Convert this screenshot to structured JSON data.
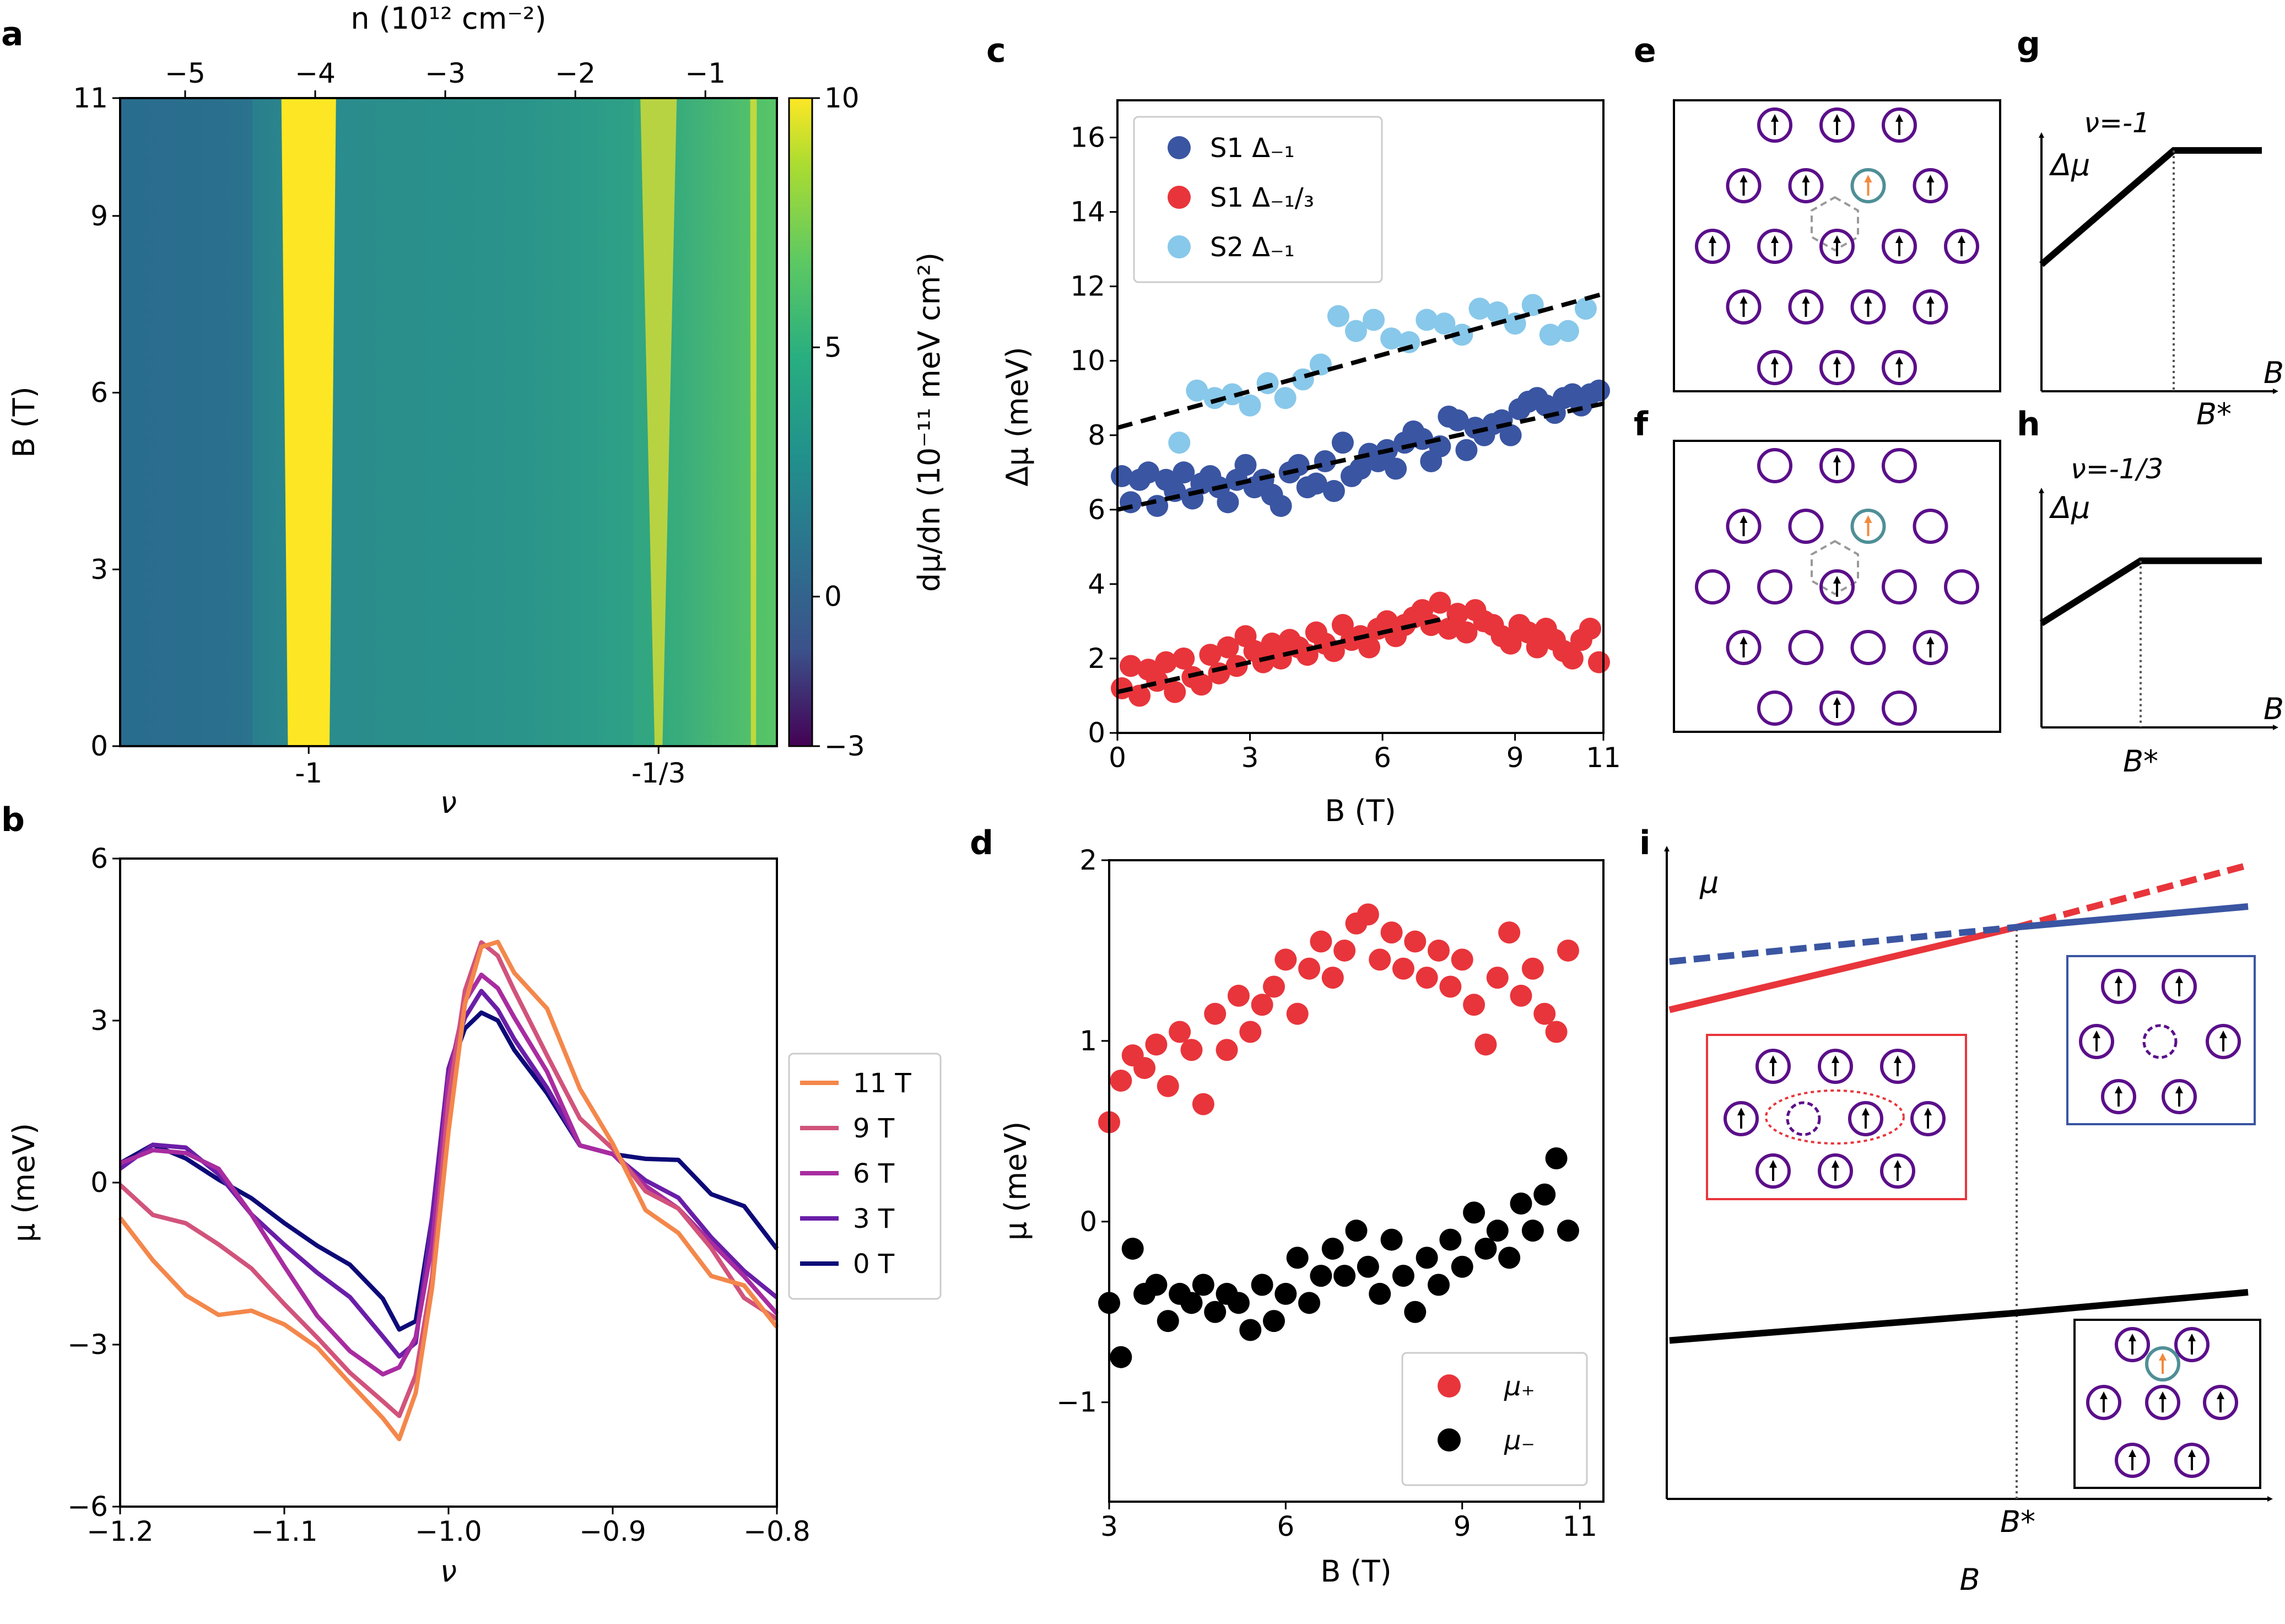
{
  "panel_labels": {
    "a": "a",
    "b": "b",
    "c": "c",
    "d": "d",
    "e": "e",
    "f": "f",
    "g": "g",
    "h": "h",
    "i": "i"
  },
  "chart_data": [
    {
      "panel": "a",
      "type": "heatmap",
      "xlabel": "ν",
      "ylabel": "B (T)",
      "top_xlabel": "n (10¹² cm⁻²)",
      "colorbar_label": "dμ/dn (10⁻¹¹ meV cm²)",
      "nu_ticks": [
        {
          "v": -1,
          "label": "-1"
        },
        {
          "v": -0.3333,
          "label": "-1/3"
        }
      ],
      "n_ticks": [
        {
          "v": -5,
          "label": "−5"
        },
        {
          "v": -4,
          "label": "−4"
        },
        {
          "v": -3,
          "label": "−3"
        },
        {
          "v": -2,
          "label": "−2"
        },
        {
          "v": -1,
          "label": "−1"
        }
      ],
      "n_range": [
        -5.5,
        -0.45
      ],
      "ylim": [
        0,
        11
      ],
      "y_ticks": [
        {
          "v": 0,
          "label": "0"
        },
        {
          "v": 3,
          "label": "3"
        },
        {
          "v": 6,
          "label": "6"
        },
        {
          "v": 9,
          "label": "9"
        },
        {
          "v": 11,
          "label": "11"
        }
      ],
      "colorbar_range": [
        -3,
        10
      ],
      "colorbar_ticks": [
        {
          "v": -3,
          "label": "−3"
        },
        {
          "v": 0,
          "label": "0"
        },
        {
          "v": 5,
          "label": "5"
        },
        {
          "v": 10,
          "label": "10"
        }
      ],
      "bands": [
        {
          "nu": -1,
          "center_n": -4.05,
          "note": "saturated (>10) incompressible peak"
        },
        {
          "nu": -0.3333,
          "center_n": -1.35,
          "note": "saturated peak"
        },
        {
          "nu": -0.15,
          "center_n": -0.62,
          "note": "narrow saturated edge"
        }
      ]
    },
    {
      "panel": "b",
      "type": "line",
      "xlabel": "ν",
      "ylabel": "μ (meV)",
      "xlim": [
        -1.2,
        -0.8
      ],
      "ylim": [
        -6,
        6
      ],
      "x_ticks": [
        {
          "v": -1.2,
          "label": "−1.2"
        },
        {
          "v": -1.1,
          "label": "−1.1"
        },
        {
          "v": -1.0,
          "label": "−1.0"
        },
        {
          "v": -0.9,
          "label": "−0.9"
        },
        {
          "v": -0.8,
          "label": "−0.8"
        }
      ],
      "y_ticks": [
        {
          "v": -6,
          "label": "−6"
        },
        {
          "v": -3,
          "label": "−3"
        },
        {
          "v": 0,
          "label": "0"
        },
        {
          "v": 3,
          "label": "3"
        },
        {
          "v": 6,
          "label": "6"
        }
      ],
      "x": [
        -1.2,
        -1.18,
        -1.16,
        -1.14,
        -1.12,
        -1.1,
        -1.08,
        -1.06,
        -1.04,
        -1.03,
        -1.02,
        -1.01,
        -1.0,
        -0.99,
        -0.98,
        -0.97,
        -0.96,
        -0.94,
        -0.92,
        -0.9,
        -0.88,
        -0.86,
        -0.84,
        -0.82,
        -0.8
      ],
      "series": [
        {
          "name": "11 T",
          "color": "#f4874b",
          "values": [
            -0.8,
            -1.5,
            -2.0,
            -2.3,
            -2.3,
            -2.7,
            -3.2,
            -3.8,
            -4.3,
            -4.6,
            -3.8,
            -2.0,
            0.8,
            3.2,
            4.4,
            4.6,
            4.0,
            3.2,
            1.6,
            0.6,
            -0.5,
            -0.8,
            -1.6,
            -1.9,
            -2.8
          ]
        },
        {
          "name": "9 T",
          "color": "#d1537b",
          "values": [
            0.0,
            -0.7,
            -0.9,
            -1.2,
            -1.5,
            -2.1,
            -2.8,
            -3.6,
            -4.2,
            -4.4,
            -3.5,
            -1.6,
            1.6,
            3.5,
            4.3,
            4.1,
            3.6,
            2.5,
            1.3,
            0.6,
            -0.3,
            -0.6,
            -1.2,
            -2.0,
            -2.4
          ]
        },
        {
          "name": "6 T",
          "color": "#a82ca0",
          "values": [
            0.4,
            0.5,
            0.4,
            0.2,
            -0.5,
            -1.4,
            -2.4,
            -3.2,
            -3.7,
            -3.5,
            -2.8,
            -1.0,
            2.0,
            3.3,
            3.7,
            3.5,
            3.1,
            2.2,
            0.8,
            0.5,
            -0.2,
            -0.6,
            -1.1,
            -1.6,
            -2.3
          ]
        },
        {
          "name": "3 T",
          "color": "#6a1ea8",
          "values": [
            0.3,
            0.6,
            0.5,
            0.1,
            -0.5,
            -1.0,
            -1.6,
            -2.2,
            -3.0,
            -3.3,
            -2.9,
            -0.5,
            2.2,
            3.0,
            3.4,
            3.1,
            2.7,
            1.9,
            0.8,
            0.5,
            -0.1,
            -0.4,
            -1.0,
            -1.5,
            -2.0
          ]
        },
        {
          "name": "0 T",
          "color": "#0d0a78",
          "values": [
            0.4,
            0.6,
            0.3,
            0.0,
            -0.2,
            -0.6,
            -1.1,
            -1.6,
            -2.3,
            -2.8,
            -2.5,
            -0.5,
            2.1,
            2.8,
            3.0,
            2.9,
            2.5,
            1.8,
            0.8,
            0.5,
            0.3,
            0.3,
            -0.2,
            -0.3,
            -1.1
          ]
        }
      ]
    },
    {
      "panel": "c",
      "type": "scatter",
      "xlabel": "B (T)",
      "ylabel": "Δμ (meV)",
      "xlim": [
        0,
        11
      ],
      "ylim": [
        0,
        17
      ],
      "x_ticks": [
        {
          "v": 0,
          "label": "0"
        },
        {
          "v": 3,
          "label": "3"
        },
        {
          "v": 6,
          "label": "6"
        },
        {
          "v": 9,
          "label": "9"
        },
        {
          "v": 11,
          "label": "11"
        }
      ],
      "y_ticks": [
        {
          "v": 0,
          "label": "0"
        },
        {
          "v": 2,
          "label": "2"
        },
        {
          "v": 4,
          "label": "4"
        },
        {
          "v": 6,
          "label": "6"
        },
        {
          "v": 8,
          "label": "8"
        },
        {
          "v": 10,
          "label": "10"
        },
        {
          "v": 12,
          "label": "12"
        },
        {
          "v": 14,
          "label": "14"
        },
        {
          "v": 16,
          "label": "16"
        }
      ],
      "series": [
        {
          "name": "S1 Δ₋₁",
          "color": "#3a55a2",
          "x": [
            0.1,
            0.3,
            0.5,
            0.7,
            0.9,
            1.1,
            1.3,
            1.5,
            1.7,
            1.9,
            2.1,
            2.3,
            2.5,
            2.7,
            2.9,
            3.1,
            3.3,
            3.5,
            3.7,
            3.9,
            4.1,
            4.3,
            4.5,
            4.7,
            4.9,
            5.1,
            5.3,
            5.5,
            5.7,
            5.9,
            6.1,
            6.3,
            6.5,
            6.7,
            6.9,
            7.1,
            7.3,
            7.5,
            7.7,
            7.9,
            8.1,
            8.3,
            8.5,
            8.7,
            8.9,
            9.1,
            9.3,
            9.5,
            9.7,
            9.9,
            10.1,
            10.3,
            10.5,
            10.7,
            10.9
          ],
          "y": [
            6.9,
            6.2,
            6.8,
            7.0,
            6.1,
            6.8,
            6.5,
            7.0,
            6.3,
            6.7,
            6.9,
            6.6,
            6.2,
            6.8,
            7.2,
            6.6,
            6.8,
            6.4,
            6.1,
            7.0,
            7.2,
            6.6,
            6.7,
            7.3,
            6.5,
            7.8,
            6.9,
            7.1,
            7.5,
            7.3,
            7.6,
            7.1,
            7.8,
            8.1,
            7.9,
            7.3,
            7.7,
            8.5,
            8.4,
            7.6,
            8.2,
            8.0,
            8.3,
            8.4,
            8.0,
            8.7,
            8.9,
            9.0,
            8.8,
            8.6,
            9.0,
            9.1,
            8.8,
            9.1,
            9.2
          ]
        },
        {
          "name": "S1 Δ₋₁/₃",
          "color": "#e8353b",
          "x": [
            0.1,
            0.3,
            0.5,
            0.7,
            0.9,
            1.1,
            1.3,
            1.5,
            1.7,
            1.9,
            2.1,
            2.3,
            2.5,
            2.7,
            2.9,
            3.1,
            3.3,
            3.5,
            3.7,
            3.9,
            4.1,
            4.3,
            4.5,
            4.7,
            4.9,
            5.1,
            5.3,
            5.5,
            5.7,
            5.9,
            6.1,
            6.3,
            6.5,
            6.7,
            6.9,
            7.1,
            7.3,
            7.5,
            7.7,
            7.9,
            8.1,
            8.3,
            8.5,
            8.7,
            8.9,
            9.1,
            9.3,
            9.5,
            9.7,
            9.9,
            10.1,
            10.3,
            10.5,
            10.7,
            10.9
          ],
          "y": [
            1.2,
            1.8,
            1.0,
            1.7,
            1.4,
            1.9,
            1.1,
            2.0,
            1.5,
            1.3,
            2.1,
            1.6,
            2.3,
            1.8,
            2.6,
            2.2,
            1.9,
            2.4,
            2.0,
            2.5,
            2.3,
            2.1,
            2.7,
            2.4,
            2.2,
            2.9,
            2.5,
            2.6,
            2.3,
            2.8,
            3.0,
            2.6,
            2.9,
            3.1,
            3.3,
            2.9,
            3.5,
            2.8,
            3.2,
            2.7,
            3.3,
            3.0,
            2.9,
            2.6,
            2.4,
            2.9,
            2.7,
            2.3,
            2.8,
            2.5,
            2.2,
            2.0,
            2.5,
            2.8,
            1.9
          ]
        },
        {
          "name": "S2 Δ₋₁",
          "color": "#88c8ea",
          "x": [
            1.4,
            1.8,
            2.2,
            2.6,
            3.0,
            3.4,
            3.8,
            4.2,
            4.6,
            5.0,
            5.4,
            5.8,
            6.2,
            6.6,
            7.0,
            7.4,
            7.8,
            8.2,
            8.6,
            9.0,
            9.4,
            9.8,
            10.2,
            10.6
          ],
          "y": [
            7.8,
            9.2,
            9.0,
            9.1,
            8.8,
            9.4,
            9.0,
            9.5,
            9.9,
            11.2,
            10.8,
            11.1,
            10.6,
            10.5,
            11.1,
            11.0,
            10.7,
            11.4,
            11.3,
            11.0,
            11.5,
            10.7,
            10.8,
            11.4
          ]
        }
      ],
      "fits": [
        {
          "series": "S1 Δ₋₁",
          "x": [
            0,
            11
          ],
          "y": [
            6.0,
            8.85
          ]
        },
        {
          "series": "S1 Δ₋₁/₃",
          "x": [
            0,
            7.5
          ],
          "y": [
            1.1,
            3.1
          ]
        },
        {
          "series": "S2 Δ₋₁",
          "x": [
            0,
            11
          ],
          "y": [
            8.2,
            11.8
          ]
        }
      ]
    },
    {
      "panel": "d",
      "type": "scatter",
      "xlabel": "B (T)",
      "ylabel": "μ (meV)",
      "xlim": [
        3,
        11.4
      ],
      "ylim": [
        -1.55,
        2
      ],
      "x_ticks": [
        {
          "v": 3,
          "label": "3"
        },
        {
          "v": 6,
          "label": "6"
        },
        {
          "v": 9,
          "label": "9"
        },
        {
          "v": 11,
          "label": "11"
        }
      ],
      "y_ticks": [
        {
          "v": -1,
          "label": "−1"
        },
        {
          "v": 0,
          "label": "0"
        },
        {
          "v": 1,
          "label": "1"
        },
        {
          "v": 2,
          "label": "2"
        }
      ],
      "series": [
        {
          "name": "μ₊",
          "color": "#e8353b",
          "x": [
            3.0,
            3.2,
            3.4,
            3.6,
            3.8,
            4.0,
            4.2,
            4.4,
            4.6,
            4.8,
            5.0,
            5.2,
            5.4,
            5.6,
            5.8,
            6.0,
            6.2,
            6.4,
            6.6,
            6.8,
            7.0,
            7.2,
            7.4,
            7.6,
            7.8,
            8.0,
            8.2,
            8.4,
            8.6,
            8.8,
            9.0,
            9.2,
            9.4,
            9.6,
            9.8,
            10.0,
            10.2,
            10.4,
            10.6,
            10.8
          ],
          "y": [
            0.55,
            0.78,
            0.92,
            0.85,
            0.98,
            0.75,
            1.05,
            0.95,
            0.65,
            1.15,
            0.95,
            1.25,
            1.05,
            1.2,
            1.3,
            1.45,
            1.15,
            1.4,
            1.55,
            1.35,
            1.5,
            1.65,
            1.7,
            1.45,
            1.6,
            1.4,
            1.55,
            1.35,
            1.5,
            1.3,
            1.45,
            1.2,
            0.98,
            1.35,
            1.6,
            1.25,
            1.4,
            1.15,
            1.05,
            1.5
          ]
        },
        {
          "name": "μ₋",
          "color": "#000000",
          "x": [
            3.0,
            3.2,
            3.4,
            3.6,
            3.8,
            4.0,
            4.2,
            4.4,
            4.6,
            4.8,
            5.0,
            5.2,
            5.4,
            5.6,
            5.8,
            6.0,
            6.2,
            6.4,
            6.6,
            6.8,
            7.0,
            7.2,
            7.4,
            7.6,
            7.8,
            8.0,
            8.2,
            8.4,
            8.6,
            8.8,
            9.0,
            9.2,
            9.4,
            9.6,
            9.8,
            10.0,
            10.2,
            10.4,
            10.6,
            10.8
          ],
          "y": [
            -0.45,
            -0.75,
            -0.15,
            -0.4,
            -0.35,
            -0.55,
            -0.4,
            -0.45,
            -0.35,
            -0.5,
            -0.4,
            -0.45,
            -0.6,
            -0.35,
            -0.55,
            -0.4,
            -0.2,
            -0.45,
            -0.3,
            -0.15,
            -0.3,
            -0.05,
            -0.25,
            -0.4,
            -0.1,
            -0.3,
            -0.5,
            -0.2,
            -0.35,
            -0.1,
            -0.25,
            0.05,
            -0.15,
            -0.05,
            -0.2,
            0.1,
            -0.05,
            0.15,
            0.35,
            -0.05
          ]
        }
      ]
    },
    {
      "panel": "g",
      "type": "line",
      "title": "ν=-1",
      "ylabel": "Δμ",
      "xlabel": "B",
      "marker": "B*",
      "x": [
        0,
        0.6,
        1.0
      ],
      "values": [
        0.5,
        0.95,
        0.95
      ]
    },
    {
      "panel": "h",
      "type": "line",
      "title": "ν=-1/3",
      "ylabel": "Δμ",
      "xlabel": "B",
      "marker": "B*",
      "x": [
        0,
        0.45,
        1.0
      ],
      "values": [
        0.45,
        0.72,
        0.72
      ]
    },
    {
      "panel": "i",
      "type": "line",
      "ylabel": "μ",
      "xlabel": "B",
      "marker": "B*",
      "x": [
        0,
        0.6,
        1.0
      ],
      "series": [
        {
          "name": "red",
          "color": "#e8353b",
          "values": [
            0.71,
            0.83,
            0.92
          ],
          "dashed_after_marker": true
        },
        {
          "name": "blue",
          "color": "#3a55a2",
          "values": [
            0.78,
            0.83,
            0.86
          ],
          "dashed_before_marker": true
        },
        {
          "name": "black",
          "color": "#000000",
          "values": [
            0.23,
            0.27,
            0.3
          ]
        }
      ]
    }
  ],
  "legends": {
    "b": [
      "11 T",
      "9 T",
      "6 T",
      "3 T",
      "0 T"
    ],
    "c": [
      "S1 Δ₋₁",
      "S1 Δ₋₁/₃",
      "S2 Δ₋₁"
    ],
    "d": [
      "μ₊",
      "μ₋"
    ]
  },
  "schematic_titles": {
    "g": "ν=-1",
    "h": "ν=-1/3"
  },
  "colors": {
    "purple": "#5b0f8a",
    "teal_ring": "#4f8f97",
    "orange_arrow": "#f28a3c",
    "red": "#e8353b",
    "blue": "#3a55a2",
    "yellow": "#fde725",
    "heat_bg": "#2d8e8c"
  }
}
